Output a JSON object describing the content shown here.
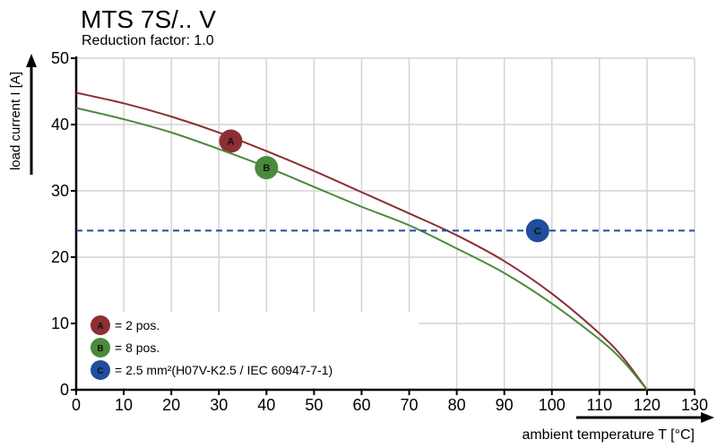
{
  "chart_data": {
    "type": "line",
    "title": "MTS 7S/.. V",
    "subtitle": "Reduction factor: 1.0",
    "xlabel": "ambient temperature T [°C]",
    "ylabel": "load current I [A]",
    "xlim": [
      0,
      130
    ],
    "ylim": [
      0,
      50
    ],
    "xticks": [
      0,
      10,
      20,
      30,
      40,
      50,
      60,
      70,
      80,
      90,
      100,
      110,
      120,
      130
    ],
    "yticks": [
      0,
      10,
      20,
      30,
      40,
      50
    ],
    "grid": true,
    "series": [
      {
        "marker": "A",
        "color": "#8b2f35",
        "x": [
          0,
          10,
          20,
          30,
          40,
          50,
          60,
          70,
          80,
          90,
          100,
          110,
          115,
          120
        ],
        "y": [
          44.8,
          43.2,
          41.2,
          38.8,
          36.0,
          33.0,
          29.8,
          26.6,
          23.3,
          19.4,
          14.5,
          8.5,
          4.8,
          0
        ],
        "marker_point": [
          32.5,
          37.5
        ]
      },
      {
        "marker": "B",
        "color": "#4a8a3c",
        "x": [
          0,
          10,
          20,
          30,
          40,
          50,
          60,
          70,
          80,
          90,
          100,
          110,
          115,
          120
        ],
        "y": [
          42.5,
          40.8,
          38.8,
          36.3,
          33.6,
          30.6,
          27.6,
          24.8,
          21.3,
          17.6,
          13.0,
          7.6,
          4.3,
          0
        ],
        "marker_point": [
          40,
          33.5
        ]
      },
      {
        "marker": "C",
        "color": "#1f4e9c",
        "style": "dashed",
        "x": [
          0,
          130
        ],
        "y": [
          24,
          24
        ],
        "marker_point": [
          97,
          24
        ]
      }
    ],
    "legend": {
      "placement": "bottom-left",
      "entries": [
        {
          "marker": "A",
          "text": "= 2 pos.",
          "color": "#8b2f35"
        },
        {
          "marker": "B",
          "text": "= 8 pos.",
          "color": "#4a8a3c"
        },
        {
          "marker": "C",
          "text": "= 2.5 mm²(H07V-K2.5 / IEC 60947-7-1)",
          "color": "#1f4e9c"
        }
      ]
    }
  }
}
